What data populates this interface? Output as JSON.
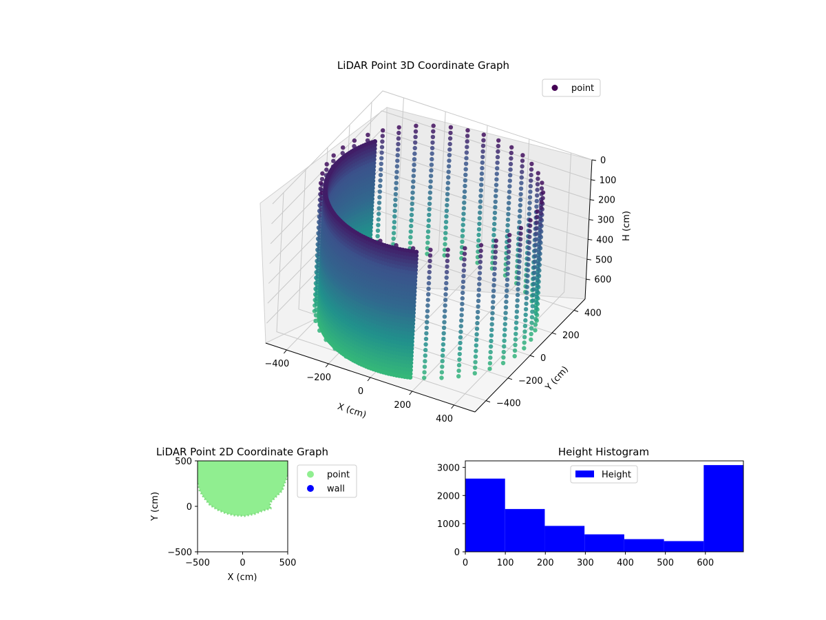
{
  "colors": {
    "viridis_dark": "#440154",
    "viridis_mid": "#31688e",
    "viridis_teal": "#35b779",
    "wall_color": "#0000ff",
    "point_color_2d": "#90ee90",
    "hist_color": "#0000ff"
  },
  "chart_data": [
    {
      "type": "scatter",
      "projection": "3d",
      "title": "LiDAR Point 3D Coordinate Graph",
      "xlabel": "X (cm)",
      "ylabel": "Y (cm)",
      "zlabel": "H (cm)",
      "xticks": [
        "−400",
        "−200",
        "0",
        "200",
        "400"
      ],
      "yticks": [
        "−400",
        "−200",
        "0",
        "200",
        "400"
      ],
      "zticks": [
        "0",
        "100",
        "200",
        "300",
        "400",
        "500",
        "600"
      ],
      "xlim": [
        -500,
        500
      ],
      "ylim": [
        -500,
        500
      ],
      "zlim": [
        700,
        0
      ],
      "grid": true,
      "legend": {
        "placement": "top-right",
        "entries": [
          "point"
        ]
      },
      "series": [
        {
          "name": "point",
          "colormap": "viridis",
          "description_shape": "cylindrical ring of wall points with dense front wall",
          "radius": 470,
          "height_range": [
            0,
            690
          ]
        }
      ]
    },
    {
      "type": "scatter",
      "title": "LiDAR Point 2D Coordinate Graph",
      "xlabel": "X (cm)",
      "ylabel": "Y (cm)",
      "xticks": [
        "−500",
        "0",
        "500"
      ],
      "yticks": [
        "−500",
        "0",
        "500"
      ],
      "xlim": [
        -500,
        500
      ],
      "ylim": [
        -500,
        500
      ],
      "legend": {
        "placement": "outside-right",
        "entries": [
          "point",
          "wall"
        ]
      },
      "series": [
        {
          "name": "point",
          "color": "#90ee90"
        },
        {
          "name": "wall",
          "color": "#0000ff"
        }
      ]
    },
    {
      "type": "bar",
      "subtype": "histogram",
      "title": "Height Histogram",
      "xlabel": "",
      "ylabel": "",
      "xticks": [
        "0",
        "100",
        "200",
        "300",
        "400",
        "500",
        "600"
      ],
      "yticks": [
        "0",
        "1000",
        "2000",
        "3000"
      ],
      "xlim": [
        0,
        695
      ],
      "ylim": [
        0,
        3230
      ],
      "bin_edges": [
        0,
        99.3,
        198.6,
        297.9,
        397.2,
        496.5,
        595.8,
        695
      ],
      "values": [
        2600,
        1520,
        920,
        620,
        450,
        380,
        3080
      ],
      "legend": {
        "placement": "top-center",
        "entries": [
          "Height"
        ]
      },
      "series": [
        {
          "name": "Height",
          "color": "#0000ff"
        }
      ]
    }
  ]
}
